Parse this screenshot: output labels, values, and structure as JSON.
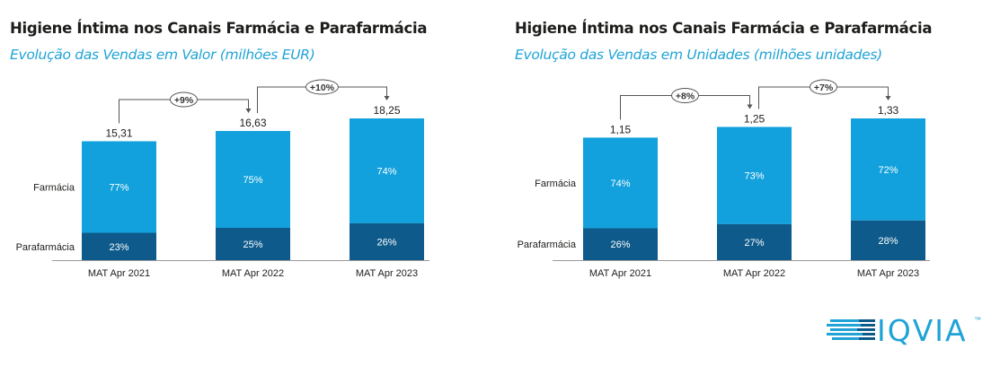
{
  "colors": {
    "farmacia": "#12a1dc",
    "parafarmacia": "#0e5a8a",
    "subtitle": "#1fa3d6",
    "title": "#1d1d1b",
    "axis_text": "#1d1d1b",
    "bar_label": "#ffffff"
  },
  "chart_data": [
    {
      "type": "bar",
      "stacked": true,
      "title": "Higiene Íntima nos Canais Farmácia e Parafarmácia",
      "subtitle": "Evolução das Vendas em Valor (milhões EUR)",
      "categories": [
        "MAT Apr 2021",
        "MAT Apr 2022",
        "MAT Apr 2023"
      ],
      "totals": [
        15.31,
        16.63,
        18.25
      ],
      "total_labels": [
        "15,31",
        "16,63",
        "18,25"
      ],
      "series": [
        {
          "name": "Parafarmácia",
          "values": [
            23,
            25,
            26
          ],
          "labels": [
            "23%",
            "25%",
            "26%"
          ]
        },
        {
          "name": "Farmácia",
          "values": [
            77,
            75,
            74
          ],
          "labels": [
            "77%",
            "75%",
            "74%"
          ]
        }
      ],
      "growth": [
        {
          "from": 0,
          "to": 1,
          "label": "+9%"
        },
        {
          "from": 1,
          "to": 2,
          "label": "+10%"
        }
      ],
      "ylim": [
        0,
        18.25
      ],
      "grid": false,
      "legend": "left"
    },
    {
      "type": "bar",
      "stacked": true,
      "title": "Higiene Íntima nos Canais Farmácia e Parafarmácia",
      "subtitle": "Evolução das Vendas em Unidades (milhões unidades)",
      "categories": [
        "MAT Apr 2021",
        "MAT Apr 2022",
        "MAT Apr 2023"
      ],
      "totals": [
        1.15,
        1.25,
        1.33
      ],
      "total_labels": [
        "1,15",
        "1,25",
        "1,33"
      ],
      "series": [
        {
          "name": "Parafarmácia",
          "values": [
            26,
            27,
            28
          ],
          "labels": [
            "26%",
            "27%",
            "28%"
          ]
        },
        {
          "name": "Farmácia",
          "values": [
            74,
            73,
            72
          ],
          "labels": [
            "74%",
            "73%",
            "72%"
          ]
        }
      ],
      "growth": [
        {
          "from": 0,
          "to": 1,
          "label": "+8%"
        },
        {
          "from": 1,
          "to": 2,
          "label": "+7%"
        }
      ],
      "ylim": [
        0,
        1.33
      ],
      "grid": false,
      "legend": "left"
    }
  ],
  "logo": {
    "text": "IQVIA",
    "tm": "™"
  }
}
